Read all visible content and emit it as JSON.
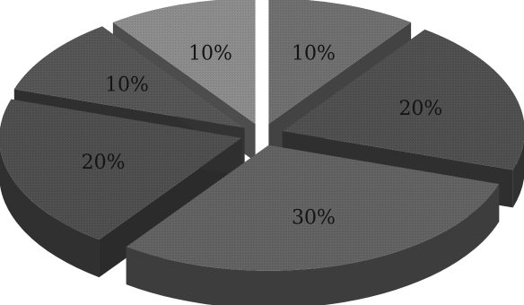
{
  "chart_data": {
    "type": "pie",
    "title": "",
    "exploded": true,
    "three_d": true,
    "slices": [
      {
        "label": "10%",
        "value": 10,
        "color": "#6f6f6f"
      },
      {
        "label": "20%",
        "value": 20,
        "color": "#4f4f4f"
      },
      {
        "label": "30%",
        "value": 30,
        "color": "#626262"
      },
      {
        "label": "20%",
        "value": 20,
        "color": "#4e4e4e"
      },
      {
        "label": "10%",
        "value": 10,
        "color": "#555555"
      },
      {
        "label": "10%",
        "value": 10,
        "color": "#8c8c8c"
      }
    ]
  }
}
